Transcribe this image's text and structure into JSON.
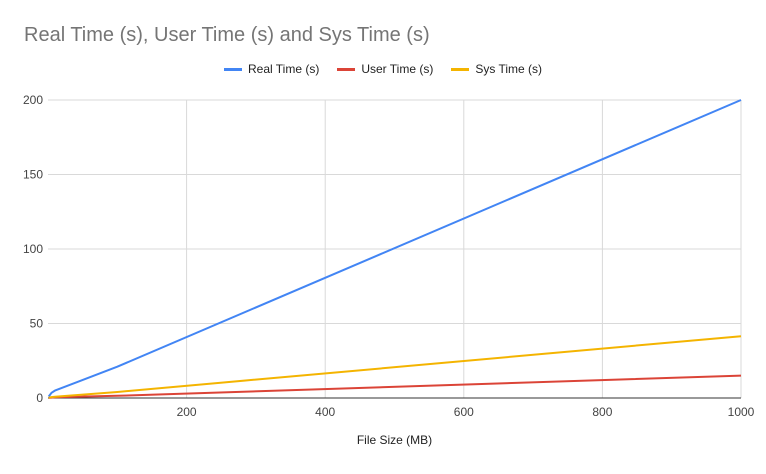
{
  "chart_data": {
    "type": "line",
    "title": "Real Time (s), User Time (s) and Sys Time (s)",
    "xlabel": "File Size (MB)",
    "ylabel": "",
    "xlim": [
      0,
      1000
    ],
    "ylim": [
      0,
      200
    ],
    "xticks": [
      200,
      400,
      600,
      800,
      1000
    ],
    "yticks": [
      0,
      50,
      100,
      150,
      200
    ],
    "grid": true,
    "legend_position": "top-center",
    "series": [
      {
        "name": "Real Time (s)",
        "color": "#4285F4",
        "x": [
          1,
          5,
          10,
          100,
          1000
        ],
        "values": [
          1,
          3.5,
          5,
          21,
          200
        ]
      },
      {
        "name": "User Time (s)",
        "color": "#DB4437",
        "x": [
          1,
          5,
          10,
          100,
          1000
        ],
        "values": [
          0.1,
          0.3,
          0.5,
          1.5,
          15
        ]
      },
      {
        "name": "Sys Time (s)",
        "color": "#F4B400",
        "x": [
          1,
          5,
          10,
          100,
          1000
        ],
        "values": [
          0.2,
          0.6,
          0.8,
          4,
          41.5
        ]
      }
    ]
  }
}
